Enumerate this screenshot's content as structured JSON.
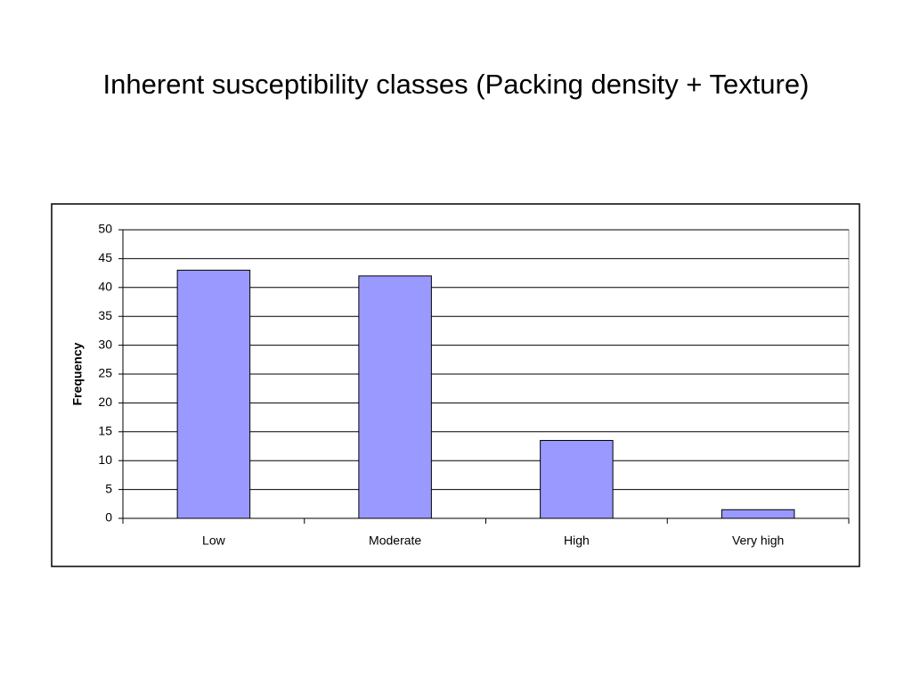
{
  "chart_data": {
    "type": "bar",
    "title": "Inherent susceptibility classes (Packing density + Texture)",
    "y_label": "Frequency",
    "categories": [
      "Low",
      "Moderate",
      "High",
      "Very high"
    ],
    "values": [
      43,
      42,
      13.5,
      1.5
    ],
    "color": "#9999ff",
    "ylim": [
      0,
      50
    ],
    "yticks": [
      0,
      5,
      10,
      15,
      20,
      25,
      30,
      35,
      40,
      45,
      50
    ],
    "grid": true
  }
}
